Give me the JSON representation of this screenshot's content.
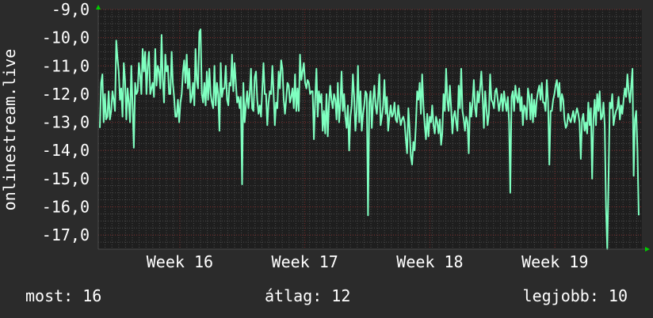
{
  "colors": {
    "background": "#2b2b2b",
    "plot_background": "#1e1e1e",
    "grid_major": "#7a2a2a",
    "grid_minor": "#4a4a4a",
    "line": "#7fffc0",
    "axis_arrow": "#00cc00",
    "text": "#ffffff"
  },
  "footer": {
    "now": "most: 16",
    "avg": "átlag: 12",
    "best": "legjobb: 10"
  },
  "chart_data": {
    "type": "line",
    "ylabel": "onlinestream.live",
    "ylim": [
      -17.5,
      -9.0
    ],
    "y_ticks": [
      {
        "value": -9,
        "label": "-9,0"
      },
      {
        "value": -10,
        "label": "-10,0"
      },
      {
        "value": -11,
        "label": "-11,0"
      },
      {
        "value": -12,
        "label": "-12,0"
      },
      {
        "value": -13,
        "label": "-13,0"
      },
      {
        "value": -14,
        "label": "-14,0"
      },
      {
        "value": -15,
        "label": "-15,0"
      },
      {
        "value": -16,
        "label": "-16,0"
      },
      {
        "value": -17,
        "label": "-17,0"
      }
    ],
    "x_ticks": [
      {
        "position": 0.15,
        "label": "Week 16"
      },
      {
        "position": 0.38,
        "label": "Week 17"
      },
      {
        "position": 0.61,
        "label": "Week 18"
      },
      {
        "position": 0.84,
        "label": "Week 19"
      }
    ],
    "grid": true,
    "series": [
      {
        "values": [
          -13.2,
          -11.6,
          -11.3,
          -13.0,
          -12.0,
          -12.9,
          -12.8,
          -11.9,
          -12.9,
          -12.6,
          -11.9,
          -12.2,
          -12.6,
          -10.1,
          -10.7,
          -11.2,
          -12.2,
          -11.8,
          -12.8,
          -10.9,
          -11.5,
          -12.9,
          -11.8,
          -12.3,
          -13.0,
          -11.0,
          -12.4,
          -13.9,
          -11.6,
          -12.0,
          -11.9,
          -10.9,
          -11.3,
          -12.0,
          -10.4,
          -11.2,
          -10.5,
          -12.0,
          -11.0,
          -10.5,
          -12.0,
          -11.8,
          -11.6,
          -12.1,
          -10.4,
          -11.7,
          -11.0,
          -11.2,
          -11.8,
          -9.9,
          -11.5,
          -12.3,
          -10.6,
          -11.2,
          -11.0,
          -12.0,
          -12.0,
          -10.5,
          -11.6,
          -12.1,
          -12.8,
          -12.8,
          -12.2,
          -13.0,
          -12.3,
          -12.0,
          -11.2,
          -10.8,
          -11.6,
          -10.6,
          -11.8,
          -11.1,
          -12.3,
          -12.1,
          -11.6,
          -12.4,
          -10.4,
          -11.5,
          -11.8,
          -9.8,
          -9.7,
          -12.0,
          -12.3,
          -11.6,
          -12.4,
          -11.2,
          -12.2,
          -11.1,
          -12.0,
          -12.3,
          -12.5,
          -11.0,
          -12.4,
          -11.6,
          -12.0,
          -13.3,
          -10.9,
          -12.1,
          -11.8,
          -11.8,
          -11.0,
          -12.2,
          -12.4,
          -11.6,
          -11.7,
          -10.6,
          -11.9,
          -10.9,
          -11.6,
          -12.3,
          -12.1,
          -12.5,
          -12.1,
          -15.2,
          -11.6,
          -13.0,
          -12.4,
          -11.9,
          -12.5,
          -12.0,
          -11.1,
          -12.5,
          -12.6,
          -11.4,
          -11.2,
          -12.2,
          -12.7,
          -12.4,
          -12.8,
          -11.8,
          -10.9,
          -12.0,
          -12.0,
          -13.1,
          -12.3,
          -11.9,
          -12.0,
          -11.0,
          -12.0,
          -13.1,
          -12.3,
          -12.5,
          -11.2,
          -11.8,
          -10.8,
          -11.1,
          -12.2,
          -12.7,
          -12.2,
          -11.6,
          -11.7,
          -12.3,
          -12.1,
          -11.8,
          -12.5,
          -11.3,
          -12.6,
          -11.8,
          -12.6,
          -10.6,
          -11.5,
          -11.2,
          -10.9,
          -11.6,
          -11.8,
          -11.5,
          -11.6,
          -12.0,
          -11.9,
          -11.9,
          -13.6,
          -12.2,
          -11.1,
          -12.8,
          -11.9,
          -12.3,
          -12.0,
          -13.3,
          -12.6,
          -13.4,
          -12.0,
          -13.5,
          -12.3,
          -11.7,
          -12.2,
          -12.5,
          -12.0,
          -12.2,
          -12.9,
          -11.6,
          -13.0,
          -12.3,
          -11.2,
          -12.6,
          -12.0,
          -12.8,
          -13.2,
          -12.4,
          -14.0,
          -12.8,
          -12.4,
          -11.3,
          -12.1,
          -13.3,
          -12.6,
          -11.0,
          -13.0,
          -11.9,
          -13.3,
          -12.7,
          -12.4,
          -11.9,
          -12.0,
          -16.3,
          -12.3,
          -11.9,
          -13.2,
          -12.2,
          -11.7,
          -12.4,
          -12.7,
          -12.1,
          -11.3,
          -13.1,
          -12.8,
          -12.4,
          -11.5,
          -12.7,
          -12.1,
          -13.3,
          -12.8,
          -12.4,
          -12.8,
          -12.7,
          -12.3,
          -12.9,
          -13.0,
          -12.4,
          -12.8,
          -13.1,
          -12.9,
          -12.8,
          -13.0,
          -13.6,
          -14.1,
          -12.5,
          -13.2,
          -14.2,
          -14.5,
          -13.7,
          -14.0,
          -13.1,
          -11.9,
          -12.2,
          -11.6,
          -12.7,
          -11.3,
          -12.4,
          -13.1,
          -13.6,
          -12.7,
          -13.5,
          -12.8,
          -13.0,
          -12.4,
          -13.1,
          -13.4,
          -12.8,
          -13.0,
          -13.4,
          -12.9,
          -13.8,
          -13.4,
          -12.0,
          -12.6,
          -11.1,
          -12.2,
          -12.6,
          -11.7,
          -12.5,
          -13.4,
          -12.8,
          -12.6,
          -13.0,
          -13.3,
          -11.7,
          -12.5,
          -11.1,
          -12.6,
          -12.9,
          -13.3,
          -12.8,
          -13.0,
          -14.1,
          -12.3,
          -12.8,
          -12.3,
          -11.5,
          -12.5,
          -12.8,
          -11.9,
          -12.3,
          -11.8,
          -11.2,
          -12.1,
          -13.2,
          -11.9,
          -12.5,
          -13.1,
          -12.7,
          -11.3,
          -12.2,
          -12.3,
          -12.5,
          -11.9,
          -11.8,
          -12.2,
          -12.6,
          -12.3,
          -12.0,
          -12.6,
          -11.9,
          -12.3,
          -12.6,
          -12.1,
          -13.0,
          -15.5,
          -12.1,
          -11.9,
          -12.6,
          -11.7,
          -12.1,
          -12.3,
          -11.8,
          -12.6,
          -12.1,
          -13.1,
          -12.4,
          -12.5,
          -12.9,
          -11.8,
          -12.1,
          -12.9,
          -12.0,
          -13.0,
          -12.2,
          -12.8,
          -12.2,
          -11.9,
          -11.7,
          -12.2,
          -11.6,
          -12.3,
          -12.3,
          -12.6,
          -11.5,
          -12.3,
          -14.5,
          -12.6,
          -12.6,
          -12.2,
          -12.0,
          -11.7,
          -11.5,
          -12.1,
          -11.6,
          -12.6,
          -12.0,
          -12.2,
          -12.9,
          -13.2,
          -13.1,
          -12.7,
          -12.9,
          -13.0,
          -12.8,
          -12.6,
          -13.0,
          -12.7,
          -12.5,
          -12.7,
          -13.0,
          -14.3,
          -12.9,
          -12.7,
          -13.3,
          -13.0,
          -13.4,
          -12.3,
          -13.1,
          -12.5,
          -15.0,
          -12.9,
          -12.2,
          -13.1,
          -12.0,
          -12.6,
          -11.9,
          -12.9,
          -12.8,
          -12.3,
          -13.1,
          -16.0,
          -17.5,
          -15.0,
          -12.3,
          -12.5,
          -12.0,
          -13.1,
          -12.8,
          -12.6,
          -12.5,
          -12.1,
          -12.9,
          -12.4,
          -12.7,
          -12.2,
          -11.8,
          -12.1,
          -11.3,
          -11.9,
          -12.3,
          -11.7,
          -11.1,
          -14.9,
          -12.9,
          -12.6,
          -14.0,
          -16.3
        ]
      }
    ]
  }
}
